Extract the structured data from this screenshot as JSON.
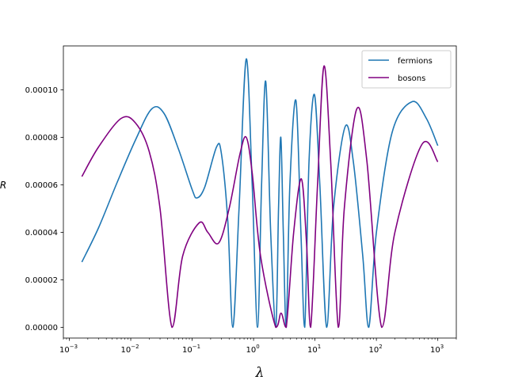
{
  "chart_data": {
    "type": "line",
    "title": "",
    "xlabel": "λ",
    "ylabel": "R",
    "xscale": "log",
    "xlim": [
      0.0008,
      2000
    ],
    "ylim": [
      -4.5e-06,
      0.0001185
    ],
    "x_ticks": [
      {
        "value": 0.001,
        "base": "10",
        "exp": "−3"
      },
      {
        "value": 0.01,
        "base": "10",
        "exp": "−2"
      },
      {
        "value": 0.1,
        "base": "10",
        "exp": "−1"
      },
      {
        "value": 1,
        "base": "10",
        "exp": "0"
      },
      {
        "value": 10,
        "base": "10",
        "exp": "1"
      },
      {
        "value": 100,
        "base": "10",
        "exp": "2"
      },
      {
        "value": 1000,
        "base": "10",
        "exp": "3"
      }
    ],
    "y_ticks": [
      {
        "value": 0.0,
        "label": "0.00000"
      },
      {
        "value": 2e-05,
        "label": "0.00002"
      },
      {
        "value": 4e-05,
        "label": "0.00004"
      },
      {
        "value": 6e-05,
        "label": "0.00006"
      },
      {
        "value": 8e-05,
        "label": "0.00008"
      },
      {
        "value": 0.0001,
        "label": "0.00010"
      }
    ],
    "legend_position": "top-right",
    "grid": false,
    "series": [
      {
        "name": "fermions",
        "color": "#1f77b4",
        "points": [
          [
            0.0016,
            2.75e-05
          ],
          [
            0.003,
            4.2e-05
          ],
          [
            0.006,
            6.1e-05
          ],
          [
            0.012,
            7.9e-05
          ],
          [
            0.022,
            9.2e-05
          ],
          [
            0.035,
            9e-05
          ],
          [
            0.06,
            7.5e-05
          ],
          [
            0.1,
            5.8e-05
          ],
          [
            0.12,
            5.45e-05
          ],
          [
            0.16,
            5.9e-05
          ],
          [
            0.25,
            7.6e-05
          ],
          [
            0.3,
            7.3e-05
          ],
          [
            0.38,
            4.5e-05
          ],
          [
            0.46,
            0.0
          ],
          [
            0.58,
            5e-05
          ],
          [
            0.76,
            0.000113
          ],
          [
            0.95,
            6e-05
          ],
          [
            1.16,
            0.0
          ],
          [
            1.35,
            6e-05
          ],
          [
            1.58,
            0.0001035
          ],
          [
            1.9,
            4e-05
          ],
          [
            2.3,
            0.0
          ],
          [
            2.55,
            5e-05
          ],
          [
            2.78,
            8e-05
          ],
          [
            3.05,
            4e-05
          ],
          [
            3.4,
            0.0
          ],
          [
            3.9,
            6e-05
          ],
          [
            4.9,
            9.55e-05
          ],
          [
            5.9,
            4e-05
          ],
          [
            6.8,
            0.0
          ],
          [
            8.0,
            7e-05
          ],
          [
            9.8,
            9.8e-05
          ],
          [
            12.0,
            6e-05
          ],
          [
            15.5,
            0.0
          ],
          [
            20.0,
            5e-05
          ],
          [
            31.0,
            8.45e-05
          ],
          [
            42.0,
            7e-05
          ],
          [
            60.0,
            3e-05
          ],
          [
            75.0,
            0.0
          ],
          [
            100.0,
            4e-05
          ],
          [
            180.0,
            8.2e-05
          ],
          [
            380.0,
            9.5e-05
          ],
          [
            650.0,
            8.8e-05
          ],
          [
            1000.0,
            7.65e-05
          ]
        ]
      },
      {
        "name": "bosons",
        "color": "#800080",
        "points": [
          [
            0.0016,
            6.35e-05
          ],
          [
            0.003,
            7.6e-05
          ],
          [
            0.007,
            8.8e-05
          ],
          [
            0.012,
            8.6e-05
          ],
          [
            0.02,
            7.4e-05
          ],
          [
            0.03,
            5e-05
          ],
          [
            0.047,
            0.0
          ],
          [
            0.07,
            3e-05
          ],
          [
            0.13,
            4.4e-05
          ],
          [
            0.18,
            4e-05
          ],
          [
            0.27,
            3.55e-05
          ],
          [
            0.4,
            5e-05
          ],
          [
            0.6,
            7.3e-05
          ],
          [
            0.76,
            8e-05
          ],
          [
            0.95,
            6.5e-05
          ],
          [
            1.3,
            3e-05
          ],
          [
            2.3,
            0.0
          ],
          [
            2.8,
            6e-06
          ],
          [
            3.4,
            0.0
          ],
          [
            4.5,
            4e-05
          ],
          [
            6.0,
            6.25e-05
          ],
          [
            7.3,
            3.5e-05
          ],
          [
            8.5,
            0.0
          ],
          [
            11.0,
            6e-05
          ],
          [
            14.0,
            0.00011
          ],
          [
            18.0,
            7e-05
          ],
          [
            24.0,
            0.0
          ],
          [
            30.0,
            5e-05
          ],
          [
            48.0,
            9.2e-05
          ],
          [
            70.0,
            7e-05
          ],
          [
            122.0,
            0.0
          ],
          [
            200.0,
            4e-05
          ],
          [
            550.0,
            7.7e-05
          ],
          [
            1000.0,
            6.97e-05
          ]
        ]
      }
    ]
  }
}
